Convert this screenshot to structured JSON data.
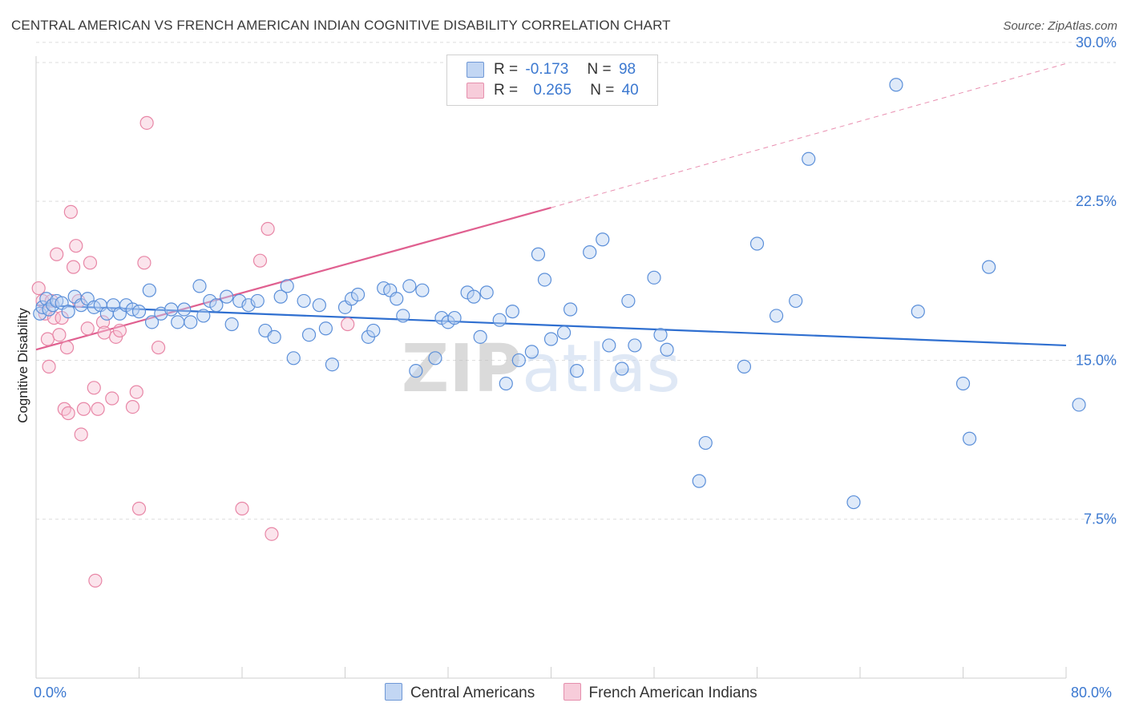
{
  "title": "CENTRAL AMERICAN VS FRENCH AMERICAN INDIAN COGNITIVE DISABILITY CORRELATION CHART",
  "source": "Source: ZipAtlas.com",
  "watermark": "ZIPatlas",
  "colors": {
    "blue": "#5b8fd9",
    "blue_fill": "#b8d0f2",
    "blue_line": "#2f6fd0",
    "pink": "#e886a6",
    "pink_fill": "#f6c3d4",
    "pink_line": "#e06090",
    "accent_text": "#3b78d0"
  },
  "legend": {
    "r_label": "R =",
    "n_label": "N =",
    "blue": {
      "r": "-0.173",
      "n": "98"
    },
    "pink": {
      "r": "0.265",
      "n": "40"
    }
  },
  "chart_data": {
    "type": "scatter",
    "title": "CENTRAL AMERICAN VS FRENCH AMERICAN INDIAN COGNITIVE DISABILITY CORRELATION CHART",
    "xlabel": "",
    "ylabel": "Cognitive Disability",
    "xlim": [
      0,
      80
    ],
    "ylim": [
      0,
      32
    ],
    "x_tick_labels": [
      "0.0%",
      "80.0%"
    ],
    "y_ticks": [
      7.5,
      15.0,
      22.5,
      30.0
    ],
    "y_tick_labels": [
      "7.5%",
      "15.0%",
      "22.5%",
      "30.0%"
    ],
    "grid": "horizontal dashed",
    "legend_position": "top-center",
    "series": [
      {
        "name": "Central Americans",
        "color": "#5b8fd9",
        "trend": {
          "x": [
            0,
            80
          ],
          "y": [
            17.6,
            15.7
          ]
        },
        "points": [
          [
            0.3,
            17.2
          ],
          [
            0.5,
            17.5
          ],
          [
            0.8,
            17.9
          ],
          [
            1.0,
            17.4
          ],
          [
            1.3,
            17.6
          ],
          [
            1.6,
            17.8
          ],
          [
            2.0,
            17.7
          ],
          [
            2.5,
            17.3
          ],
          [
            3.0,
            18.0
          ],
          [
            3.5,
            17.6
          ],
          [
            4.0,
            17.9
          ],
          [
            4.5,
            17.5
          ],
          [
            5.0,
            17.6
          ],
          [
            5.5,
            17.2
          ],
          [
            6.0,
            17.6
          ],
          [
            6.5,
            17.2
          ],
          [
            7.0,
            17.6
          ],
          [
            7.5,
            17.4
          ],
          [
            8.0,
            17.3
          ],
          [
            8.8,
            18.3
          ],
          [
            9.0,
            16.8
          ],
          [
            9.7,
            17.2
          ],
          [
            10.5,
            17.4
          ],
          [
            11.0,
            16.8
          ],
          [
            11.5,
            17.4
          ],
          [
            12.0,
            16.8
          ],
          [
            12.7,
            18.5
          ],
          [
            13.0,
            17.1
          ],
          [
            13.5,
            17.8
          ],
          [
            14.0,
            17.6
          ],
          [
            14.8,
            18.0
          ],
          [
            15.2,
            16.7
          ],
          [
            15.8,
            17.8
          ],
          [
            16.5,
            17.6
          ],
          [
            17.2,
            17.8
          ],
          [
            17.8,
            16.4
          ],
          [
            18.5,
            16.1
          ],
          [
            19.0,
            18.0
          ],
          [
            19.5,
            18.5
          ],
          [
            20.0,
            15.1
          ],
          [
            20.8,
            17.8
          ],
          [
            21.2,
            16.2
          ],
          [
            22.0,
            17.6
          ],
          [
            22.5,
            16.5
          ],
          [
            23.0,
            14.8
          ],
          [
            24.0,
            17.5
          ],
          [
            24.5,
            17.9
          ],
          [
            25.0,
            18.1
          ],
          [
            25.8,
            16.1
          ],
          [
            26.2,
            16.4
          ],
          [
            27.0,
            18.4
          ],
          [
            27.5,
            18.3
          ],
          [
            28.0,
            17.9
          ],
          [
            28.5,
            17.1
          ],
          [
            29.0,
            18.5
          ],
          [
            29.5,
            14.5
          ],
          [
            30.0,
            18.3
          ],
          [
            31.0,
            15.1
          ],
          [
            31.5,
            17.0
          ],
          [
            32.0,
            16.8
          ],
          [
            32.5,
            17.0
          ],
          [
            33.5,
            18.2
          ],
          [
            34.0,
            18.0
          ],
          [
            34.5,
            16.1
          ],
          [
            35.0,
            18.2
          ],
          [
            36.0,
            16.9
          ],
          [
            36.5,
            13.9
          ],
          [
            37.0,
            17.3
          ],
          [
            37.5,
            15.0
          ],
          [
            38.5,
            15.4
          ],
          [
            39.0,
            20.0
          ],
          [
            39.5,
            18.8
          ],
          [
            40.0,
            16.0
          ],
          [
            41.0,
            16.3
          ],
          [
            41.5,
            17.4
          ],
          [
            42.0,
            14.5
          ],
          [
            43.0,
            20.1
          ],
          [
            44.0,
            20.7
          ],
          [
            44.5,
            15.7
          ],
          [
            45.5,
            14.6
          ],
          [
            46.0,
            17.8
          ],
          [
            46.5,
            15.7
          ],
          [
            48.0,
            18.9
          ],
          [
            48.5,
            16.2
          ],
          [
            49.0,
            15.5
          ],
          [
            51.5,
            9.3
          ],
          [
            52.0,
            11.1
          ],
          [
            55.0,
            14.7
          ],
          [
            56.0,
            20.5
          ],
          [
            57.5,
            17.1
          ],
          [
            59.0,
            17.8
          ],
          [
            60.0,
            24.5
          ],
          [
            63.5,
            8.3
          ],
          [
            66.8,
            28.0
          ],
          [
            68.5,
            17.3
          ],
          [
            72.0,
            13.9
          ],
          [
            72.5,
            11.3
          ],
          [
            74.0,
            19.4
          ],
          [
            81.0,
            12.9
          ]
        ]
      },
      {
        "name": "French American Indians",
        "color": "#e886a6",
        "trend": {
          "x": [
            0,
            40
          ],
          "y": [
            15.5,
            22.2
          ]
        },
        "trend_extension": {
          "x": [
            40,
            80
          ],
          "y": [
            22.2,
            29.0
          ]
        },
        "points": [
          [
            0.2,
            18.4
          ],
          [
            0.5,
            17.8
          ],
          [
            0.7,
            17.2
          ],
          [
            0.9,
            16.0
          ],
          [
            1.0,
            14.7
          ],
          [
            1.2,
            17.8
          ],
          [
            1.4,
            17.0
          ],
          [
            1.6,
            20.0
          ],
          [
            1.8,
            16.2
          ],
          [
            2.0,
            17.0
          ],
          [
            2.2,
            12.7
          ],
          [
            2.4,
            15.6
          ],
          [
            2.5,
            12.5
          ],
          [
            2.7,
            22.0
          ],
          [
            2.9,
            19.4
          ],
          [
            3.1,
            20.4
          ],
          [
            3.3,
            17.8
          ],
          [
            3.5,
            11.5
          ],
          [
            3.7,
            12.7
          ],
          [
            4.0,
            16.5
          ],
          [
            4.2,
            19.6
          ],
          [
            4.5,
            13.7
          ],
          [
            4.6,
            4.6
          ],
          [
            4.8,
            12.7
          ],
          [
            5.2,
            16.8
          ],
          [
            5.3,
            16.3
          ],
          [
            5.9,
            13.2
          ],
          [
            6.2,
            16.1
          ],
          [
            6.5,
            16.4
          ],
          [
            7.5,
            12.8
          ],
          [
            7.8,
            13.5
          ],
          [
            8.0,
            8.0
          ],
          [
            8.4,
            19.6
          ],
          [
            8.6,
            26.2
          ],
          [
            9.5,
            15.6
          ],
          [
            16.0,
            8.0
          ],
          [
            17.4,
            19.7
          ],
          [
            18.0,
            21.2
          ],
          [
            18.3,
            6.8
          ],
          [
            24.2,
            16.7
          ]
        ]
      }
    ]
  }
}
